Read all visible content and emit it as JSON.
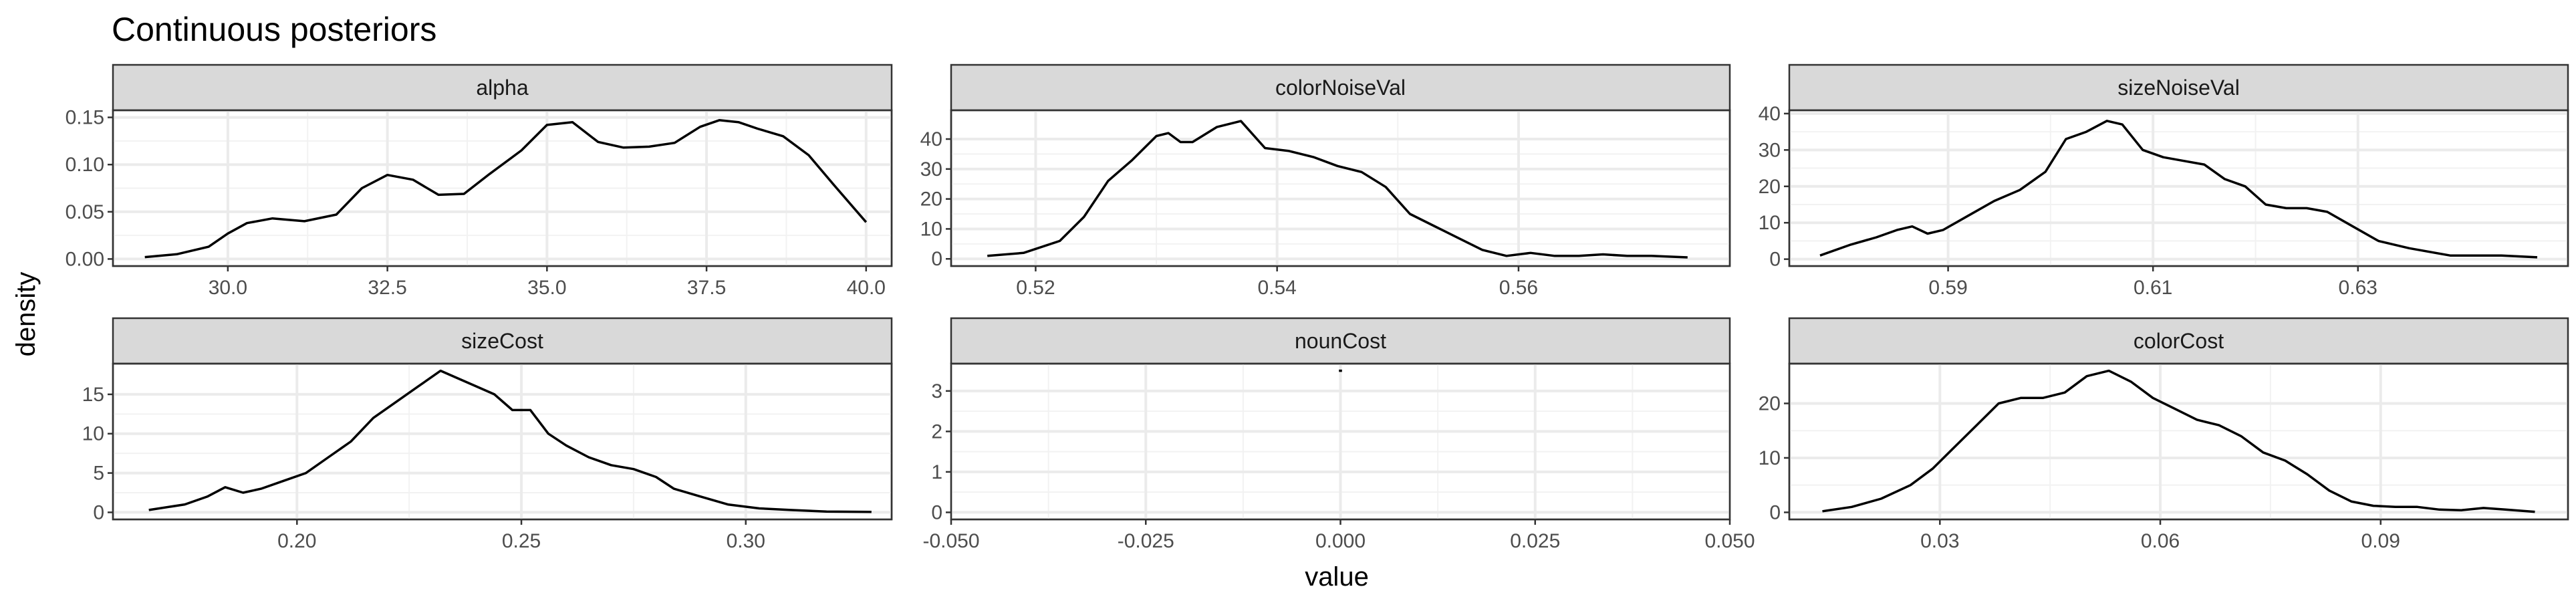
{
  "title": "Continuous posteriors",
  "xlabel": "value",
  "ylabel": "density",
  "chart_data": [
    {
      "type": "line",
      "panel": "alpha",
      "xlim": [
        28.2,
        40.4
      ],
      "ylim": [
        -0.0075,
        0.1575
      ],
      "xticks": [
        30.0,
        32.5,
        35.0,
        37.5,
        40.0
      ],
      "xtick_labels": [
        "30.0",
        "32.5",
        "35.0",
        "37.5",
        "40.0"
      ],
      "yticks": [
        0,
        0.05,
        0.1,
        0.15
      ],
      "ytick_labels": [
        "0.00",
        "0.05",
        "0.10",
        "0.15"
      ],
      "x": [
        28.7,
        29.2,
        29.7,
        30.0,
        30.3,
        30.7,
        31.2,
        31.7,
        32.1,
        32.5,
        32.9,
        33.3,
        33.7,
        34.1,
        34.6,
        35.0,
        35.4,
        35.8,
        36.2,
        36.6,
        37.0,
        37.4,
        37.7,
        38.0,
        38.3,
        38.7,
        39.1,
        39.5,
        40.0
      ],
      "y": [
        0.002,
        0.005,
        0.013,
        0.027,
        0.038,
        0.043,
        0.04,
        0.047,
        0.075,
        0.089,
        0.084,
        0.068,
        0.069,
        0.09,
        0.115,
        0.142,
        0.145,
        0.124,
        0.118,
        0.119,
        0.123,
        0.14,
        0.147,
        0.145,
        0.138,
        0.13,
        0.11,
        0.078,
        0.039
      ]
    },
    {
      "type": "line",
      "panel": "colorNoiseVal",
      "xlim": [
        0.513,
        0.5775
      ],
      "ylim": [
        -2.4,
        49.6
      ],
      "xticks": [
        0.52,
        0.54,
        0.56
      ],
      "xtick_labels": [
        "0.52",
        "0.54",
        "0.56"
      ],
      "yticks": [
        0,
        10,
        20,
        30,
        40
      ],
      "ytick_labels": [
        "0",
        "10",
        "20",
        "30",
        "40"
      ],
      "x": [
        0.516,
        0.519,
        0.522,
        0.524,
        0.526,
        0.528,
        0.53,
        0.531,
        0.532,
        0.533,
        0.535,
        0.537,
        0.539,
        0.541,
        0.543,
        0.545,
        0.547,
        0.549,
        0.551,
        0.553,
        0.555,
        0.557,
        0.559,
        0.561,
        0.563,
        0.565,
        0.567,
        0.569,
        0.571,
        0.574
      ],
      "y": [
        1,
        2,
        6,
        14,
        26,
        33,
        41,
        42,
        39,
        39,
        44,
        46,
        37,
        36,
        34,
        31,
        29,
        24,
        15,
        11,
        7,
        3,
        1,
        2,
        1,
        1,
        1.5,
        1,
        1,
        0.5
      ]
    },
    {
      "type": "line",
      "panel": "sizeNoiseVal",
      "xlim": [
        0.5745,
        0.6505
      ],
      "ylim": [
        -1.9,
        40.9
      ],
      "xticks": [
        0.59,
        0.61,
        0.63
      ],
      "xtick_labels": [
        "0.59",
        "0.61",
        "0.63"
      ],
      "yticks": [
        0,
        10,
        20,
        30,
        40
      ],
      "ytick_labels": [
        "0",
        "10",
        "20",
        "30",
        "40"
      ],
      "x": [
        0.5775,
        0.5805,
        0.583,
        0.585,
        0.5865,
        0.588,
        0.5895,
        0.592,
        0.5945,
        0.597,
        0.5995,
        0.6015,
        0.6035,
        0.6055,
        0.607,
        0.609,
        0.611,
        0.613,
        0.615,
        0.617,
        0.619,
        0.621,
        0.623,
        0.625,
        0.627,
        0.6295,
        0.632,
        0.635,
        0.639,
        0.644,
        0.6475
      ],
      "y": [
        1,
        4,
        6,
        8,
        9,
        7,
        8,
        12,
        16,
        19,
        24,
        33,
        35,
        38,
        37,
        30,
        28,
        27,
        26,
        22,
        20,
        15,
        14,
        14,
        13,
        9,
        5,
        3,
        1,
        1,
        0.5
      ]
    },
    {
      "type": "line",
      "panel": "sizeCost",
      "xlim": [
        0.159,
        0.3325
      ],
      "ylim": [
        -0.9,
        18.9
      ],
      "xticks": [
        0.2,
        0.25,
        0.3
      ],
      "xtick_labels": [
        "0.20",
        "0.25",
        "0.30"
      ],
      "yticks": [
        0,
        5,
        10,
        15
      ],
      "ytick_labels": [
        "0",
        "5",
        "10",
        "15"
      ],
      "x": [
        0.167,
        0.175,
        0.18,
        0.184,
        0.188,
        0.192,
        0.197,
        0.202,
        0.207,
        0.212,
        0.217,
        0.222,
        0.227,
        0.232,
        0.236,
        0.24,
        0.244,
        0.248,
        0.252,
        0.256,
        0.26,
        0.265,
        0.27,
        0.275,
        0.28,
        0.284,
        0.29,
        0.296,
        0.303,
        0.31,
        0.318,
        0.328
      ],
      "y": [
        0.3,
        1,
        2,
        3.2,
        2.5,
        3,
        4,
        5,
        7,
        9,
        12,
        14,
        16,
        18,
        17,
        16,
        15,
        13,
        13,
        10,
        8.5,
        7,
        6,
        5.5,
        4.5,
        3,
        2,
        1,
        0.5,
        0.3,
        0.1,
        0.05
      ]
    },
    {
      "type": "line",
      "panel": "nounCost",
      "xlim": [
        -0.05,
        0.05
      ],
      "ylim": [
        -0.175,
        3.675
      ],
      "xticks": [
        -0.05,
        -0.025,
        0,
        0.025,
        0.05
      ],
      "xtick_labels": [
        "-0.050",
        "-0.025",
        "0.000",
        "0.025",
        "0.050"
      ],
      "yticks": [
        0,
        1,
        2,
        3
      ],
      "ytick_labels": [
        "0",
        "1",
        "2",
        "3"
      ],
      "x": [
        -0.0002,
        0.0002
      ],
      "y": [
        3.5,
        3.5
      ]
    },
    {
      "type": "line",
      "panel": "colorCost",
      "xlim": [
        0.0095,
        0.1155
      ],
      "ylim": [
        -1.3,
        27.3
      ],
      "xticks": [
        0.03,
        0.06,
        0.09
      ],
      "xtick_labels": [
        "0.03",
        "0.06",
        "0.09"
      ],
      "yticks": [
        0,
        10,
        20
      ],
      "ytick_labels": [
        "0",
        "10",
        "20"
      ],
      "x": [
        0.014,
        0.018,
        0.022,
        0.026,
        0.029,
        0.032,
        0.035,
        0.038,
        0.041,
        0.044,
        0.047,
        0.05,
        0.053,
        0.056,
        0.059,
        0.062,
        0.065,
        0.068,
        0.071,
        0.074,
        0.077,
        0.08,
        0.083,
        0.086,
        0.089,
        0.092,
        0.095,
        0.098,
        0.101,
        0.104,
        0.107,
        0.111
      ],
      "y": [
        0.2,
        1,
        2.5,
        5,
        8,
        12,
        16,
        20,
        21,
        21,
        22,
        25,
        26,
        24,
        21,
        19,
        17,
        16,
        14,
        11,
        9.5,
        7,
        4,
        2,
        1.2,
        1,
        1,
        0.5,
        0.4,
        0.8,
        0.5,
        0.1
      ]
    }
  ]
}
